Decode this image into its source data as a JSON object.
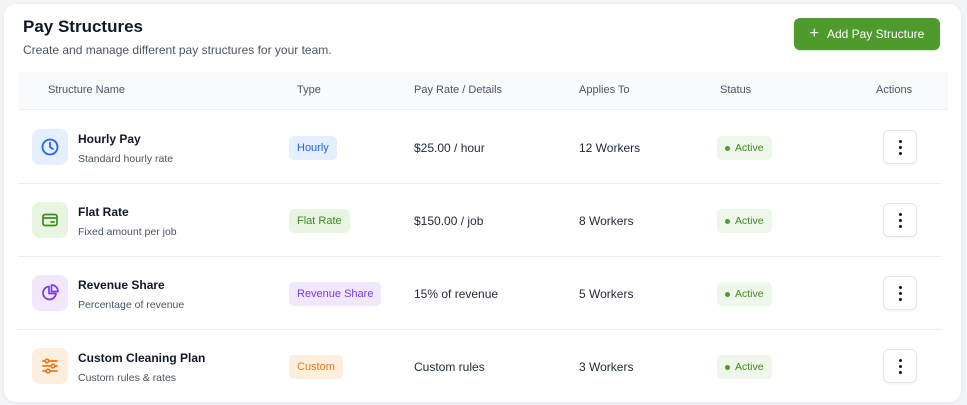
{
  "header": {
    "title": "Pay Structures",
    "subtitle": "Create and manage different pay structures for your team.",
    "add_button_label": "Add Pay Structure",
    "accent_color": "#4f9a2d"
  },
  "table": {
    "columns": [
      "Structure Name",
      "Type",
      "Pay Rate / Details",
      "Applies To",
      "Status",
      "Actions"
    ],
    "rows": [
      {
        "name": "Hourly Pay",
        "description": "Standard hourly rate",
        "icon": "clock-icon",
        "type": "Hourly",
        "rate": "$25.00 / hour",
        "applies_to": "12 Workers",
        "status": "Active"
      },
      {
        "name": "Flat Rate",
        "description": "Fixed amount per job",
        "icon": "wallet-icon",
        "type": "Flat Rate",
        "rate": "$150.00 / job",
        "applies_to": "8 Workers",
        "status": "Active"
      },
      {
        "name": "Revenue Share",
        "description": "Percentage of revenue",
        "icon": "pie-chart-icon",
        "type": "Revenue Share",
        "rate": "15% of revenue",
        "applies_to": "5 Workers",
        "status": "Active"
      },
      {
        "name": "Custom Cleaning Plan",
        "description": "Custom rules & rates",
        "icon": "sliders-icon",
        "type": "Custom",
        "rate": "Custom rules",
        "applies_to": "3 Workers",
        "status": "Active"
      }
    ]
  }
}
